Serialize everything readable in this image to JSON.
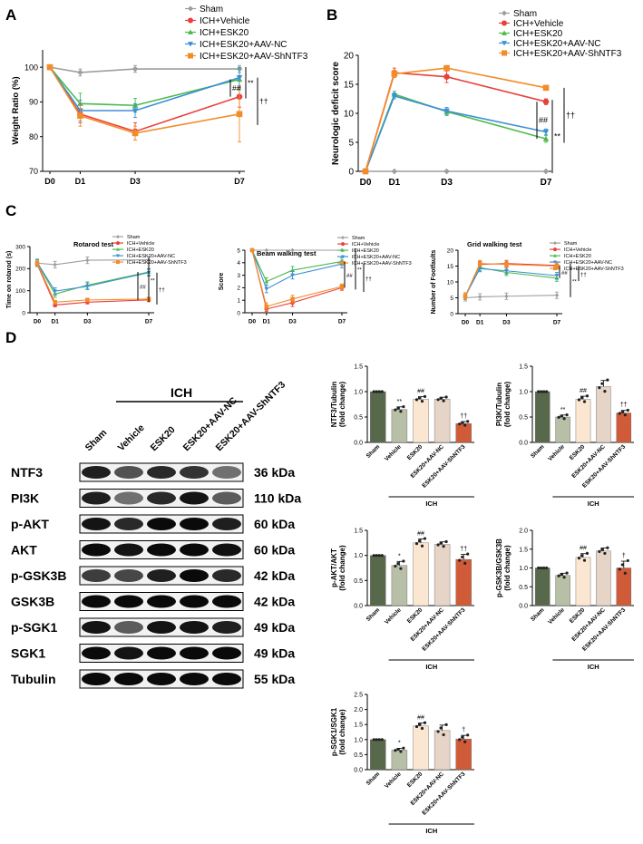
{
  "panels": {
    "A": "A",
    "B": "B",
    "C": "C",
    "D": "D"
  },
  "colors": {
    "sham": "#9e9e9e",
    "vehicle": "#e8413c",
    "esk20": "#4cba4a",
    "nc": "#3d8fd6",
    "sh": "#f28c28",
    "bar_sham": "#58684a",
    "bar_vehicle": "#b7c0a6",
    "bar_esk20": "#fbe6d2",
    "bar_nc": "#e6d4c6",
    "bar_sh": "#cf5b38"
  },
  "chart_data": [
    {
      "id": "A",
      "type": "line",
      "title": "",
      "xlabel": "",
      "ylabel": "Weight Ratio (%)",
      "x": [
        "D0",
        "D1",
        "D3",
        "D7"
      ],
      "ylim": [
        70,
        105
      ],
      "yticks": [
        70,
        80,
        90,
        100
      ],
      "legend": "top-right",
      "series": [
        {
          "name": "Sham",
          "key": "sham",
          "values": [
            100,
            98.5,
            99.5,
            99.5
          ],
          "err": [
            0,
            1,
            1,
            1
          ],
          "marker": "diamond"
        },
        {
          "name": "ICH+Vehicle",
          "key": "vehicle",
          "values": [
            100,
            86.5,
            81.5,
            91.5
          ],
          "err": [
            0,
            2.5,
            2.5,
            3
          ],
          "marker": "circle"
        },
        {
          "name": "ICH+ESK20",
          "key": "esk20",
          "values": [
            100,
            89.5,
            89,
            96.5
          ],
          "err": [
            0,
            3,
            2,
            3
          ],
          "marker": "triangle"
        },
        {
          "name": "ICH+ESK20+AAV-NC",
          "key": "nc",
          "values": [
            100,
            87.5,
            87.5,
            97
          ],
          "err": [
            0,
            3,
            2,
            3
          ],
          "marker": "triangle-down"
        },
        {
          "name": "ICH+ESK20+AAV-ShNTF3",
          "key": "sh",
          "values": [
            100,
            86,
            81,
            86.5
          ],
          "err": [
            0,
            3,
            2,
            8
          ],
          "marker": "square"
        }
      ],
      "sig": [
        "##",
        "**",
        "††"
      ]
    },
    {
      "id": "B",
      "type": "line",
      "title": "",
      "xlabel": "",
      "ylabel": "Neurologic deficit score",
      "x": [
        "D0",
        "D1",
        "D3",
        "D7"
      ],
      "ylim": [
        0,
        20
      ],
      "yticks": [
        0,
        5,
        10,
        15,
        20
      ],
      "legend": "top-right",
      "series": [
        {
          "name": "Sham",
          "key": "sham",
          "values": [
            0,
            0,
            0,
            0
          ],
          "err": [
            0,
            0,
            0,
            0
          ],
          "marker": "diamond"
        },
        {
          "name": "ICH+Vehicle",
          "key": "vehicle",
          "values": [
            0,
            17,
            16.3,
            12
          ],
          "err": [
            0,
            0.8,
            1,
            0.5
          ],
          "marker": "circle"
        },
        {
          "name": "ICH+ESK20",
          "key": "esk20",
          "values": [
            0,
            13.3,
            10.3,
            5.6
          ],
          "err": [
            0,
            0.5,
            0.7,
            0.6
          ],
          "marker": "triangle"
        },
        {
          "name": "ICH+ESK20+AAV-NC",
          "key": "nc",
          "values": [
            0,
            13,
            10.4,
            6.8
          ],
          "err": [
            0,
            0.5,
            0.6,
            0.5
          ],
          "marker": "triangle-down"
        },
        {
          "name": "ICH+ESK20+AAV-ShNTF3",
          "key": "sh",
          "values": [
            0,
            16.8,
            17.8,
            14.4
          ],
          "err": [
            0,
            0.6,
            0.3,
            0.4
          ],
          "marker": "square"
        }
      ],
      "sig": [
        "##",
        "**",
        "††"
      ]
    },
    {
      "id": "C1",
      "type": "line",
      "title": "Rotarod test",
      "xlabel": "",
      "ylabel": "Time on rotarod (s)",
      "x": [
        "D0",
        "D1",
        "D3",
        "D7"
      ],
      "ylim": [
        0,
        300
      ],
      "yticks": [
        0,
        100,
        200,
        300
      ],
      "legend": "top-right",
      "series": [
        {
          "name": "Sham",
          "key": "sham",
          "values": [
            225,
            218,
            238,
            240
          ],
          "err": [
            15,
            15,
            15,
            15
          ],
          "marker": "diamond"
        },
        {
          "name": "ICH+Vehicle",
          "key": "vehicle",
          "values": [
            220,
            35,
            48,
            58
          ],
          "err": [
            10,
            8,
            8,
            8
          ],
          "marker": "circle"
        },
        {
          "name": "ICH+ESK20",
          "key": "esk20",
          "values": [
            225,
            85,
            125,
            185
          ],
          "err": [
            15,
            15,
            15,
            15
          ],
          "marker": "triangle"
        },
        {
          "name": "ICH+ESK20+AAV-NC",
          "key": "nc",
          "values": [
            228,
            98,
            120,
            182
          ],
          "err": [
            15,
            15,
            15,
            15
          ],
          "marker": "triangle-down"
        },
        {
          "name": "ICH+ESK20+AAV-ShNTF3",
          "key": "sh",
          "values": [
            225,
            48,
            58,
            62
          ],
          "err": [
            10,
            8,
            8,
            8
          ],
          "marker": "square"
        }
      ],
      "sig": [
        "##",
        "**",
        "††"
      ]
    },
    {
      "id": "C2",
      "type": "line",
      "title": "Beam walking test",
      "xlabel": "",
      "ylabel": "Score",
      "x": [
        "D0",
        "D1",
        "D3",
        "D7"
      ],
      "ylim": [
        0,
        5
      ],
      "yticks": [
        0,
        1,
        2,
        3,
        4,
        5
      ],
      "legend": "top-right",
      "series": [
        {
          "name": "Sham",
          "key": "sham",
          "values": [
            5,
            5,
            5,
            5
          ],
          "err": [
            0,
            0,
            0,
            0
          ],
          "marker": "diamond"
        },
        {
          "name": "ICH+Vehicle",
          "key": "vehicle",
          "values": [
            5,
            0.3,
            0.8,
            2.0
          ],
          "err": [
            0,
            0.2,
            0.3,
            0.2
          ],
          "marker": "circle"
        },
        {
          "name": "ICH+ESK20",
          "key": "esk20",
          "values": [
            5,
            2.5,
            3.4,
            4.1
          ],
          "err": [
            0,
            0.3,
            0.3,
            0.3
          ],
          "marker": "triangle"
        },
        {
          "name": "ICH+ESK20+AAV-NC",
          "key": "nc",
          "values": [
            5,
            1.9,
            3.0,
            3.9
          ],
          "err": [
            0,
            0.3,
            0.3,
            0.3
          ],
          "marker": "triangle-down"
        },
        {
          "name": "ICH+ESK20+AAV-ShNTF3",
          "key": "sh",
          "values": [
            5,
            0.5,
            1.1,
            2.1
          ],
          "err": [
            0,
            0.3,
            0.3,
            0.2
          ],
          "marker": "square"
        }
      ],
      "sig": [
        "##",
        "**",
        "††"
      ]
    },
    {
      "id": "C3",
      "type": "line",
      "title": "Grid walking test",
      "xlabel": "",
      "ylabel": "Number of Footfaults",
      "x": [
        "D0",
        "D1",
        "D3",
        "D7"
      ],
      "ylim": [
        0,
        20
      ],
      "yticks": [
        0,
        5,
        10,
        15,
        20
      ],
      "legend": "top-right",
      "series": [
        {
          "name": "Sham",
          "key": "sham",
          "values": [
            5,
            5.3,
            5.5,
            5.8
          ],
          "err": [
            1,
            1,
            1,
            1
          ],
          "marker": "diamond"
        },
        {
          "name": "ICH+Vehicle",
          "key": "vehicle",
          "values": [
            5.5,
            15.5,
            15.8,
            15.2
          ],
          "err": [
            1,
            1,
            1,
            1
          ],
          "marker": "circle"
        },
        {
          "name": "ICH+ESK20",
          "key": "esk20",
          "values": [
            5.5,
            14.5,
            13.0,
            11.2
          ],
          "err": [
            1,
            1,
            1,
            1
          ],
          "marker": "triangle"
        },
        {
          "name": "ICH+ESK20+AAV-NC",
          "key": "nc",
          "values": [
            5.5,
            14.2,
            13.5,
            12.0
          ],
          "err": [
            1,
            1,
            1,
            1
          ],
          "marker": "triangle-down"
        },
        {
          "name": "ICH+ESK20+AAV-ShNTF3",
          "key": "sh",
          "values": [
            5.5,
            15.8,
            15.5,
            15.0
          ],
          "err": [
            1,
            1,
            1,
            1
          ],
          "marker": "square"
        }
      ],
      "sig": [
        "##",
        "**",
        "††"
      ]
    },
    {
      "id": "D1",
      "type": "bar",
      "ylabel": "NTF3/Tubulin\n(fold change)",
      "categories": [
        "Sham",
        "Vehicle",
        "ESK20",
        "ESK20+AAV-NC",
        "ESK20+AAV-ShNTF3"
      ],
      "values": [
        1.0,
        0.65,
        0.85,
        0.85,
        0.37
      ],
      "err": [
        0,
        0.05,
        0.05,
        0.04,
        0.04
      ],
      "ylim": [
        0,
        1.5
      ],
      "yticks": [
        0.0,
        0.5,
        1.0,
        1.5
      ],
      "marks": [
        "",
        "**",
        "##",
        "",
        "††"
      ],
      "group": "ICH"
    },
    {
      "id": "D2",
      "type": "bar",
      "ylabel": "PI3K/Tubulin\n(fold change)",
      "categories": [
        "Sham",
        "Vehicle",
        "ESK20",
        "ESK20+AAV-NC",
        "ESK20+AAV-ShNTF3"
      ],
      "values": [
        1.0,
        0.5,
        0.85,
        1.1,
        0.58
      ],
      "err": [
        0,
        0.04,
        0.06,
        0.12,
        0.05
      ],
      "ylim": [
        0,
        1.5
      ],
      "yticks": [
        0.0,
        0.5,
        1.0,
        1.5
      ],
      "marks": [
        "",
        "**",
        "##",
        "",
        "††"
      ],
      "group": "ICH"
    },
    {
      "id": "D3",
      "type": "bar",
      "ylabel": "p-AKT/AKT\n(fold change)",
      "categories": [
        "Sham",
        "Vehicle",
        "ESK20",
        "ESK20+AAV-NC",
        "ESK20+AAV-ShNTF3"
      ],
      "values": [
        1.0,
        0.8,
        1.25,
        1.22,
        0.92
      ],
      "err": [
        0,
        0.08,
        0.08,
        0.05,
        0.1
      ],
      "ylim": [
        0,
        1.5
      ],
      "yticks": [
        0.0,
        0.5,
        1.0,
        1.5
      ],
      "marks": [
        "",
        "*",
        "##",
        "",
        "††"
      ],
      "group": "ICH"
    },
    {
      "id": "D4",
      "type": "bar",
      "ylabel": "p-GSK3B/GSK3B\n(fold change)",
      "categories": [
        "Sham",
        "Vehicle",
        "ESK20",
        "ESK20+AAV-NC",
        "ESK20+AAV-ShNTF3"
      ],
      "values": [
        1.0,
        0.8,
        1.28,
        1.45,
        1.0
      ],
      "err": [
        0,
        0.06,
        0.1,
        0.08,
        0.18
      ],
      "ylim": [
        0,
        2.0
      ],
      "yticks": [
        0.0,
        0.5,
        1.0,
        1.5,
        2.0
      ],
      "marks": [
        "",
        "",
        "##",
        "",
        "†"
      ],
      "group": "ICH"
    },
    {
      "id": "D5",
      "type": "bar",
      "ylabel": "p-SGK1/SGK1\n(fold change)",
      "categories": [
        "Sham",
        "Vehicle",
        "ESK20",
        "ESK20+AAV-NC",
        "ESK20+AAV-ShNTF3"
      ],
      "values": [
        1.0,
        0.65,
        1.45,
        1.3,
        1.02
      ],
      "err": [
        0,
        0.06,
        0.1,
        0.18,
        0.12
      ],
      "ylim": [
        0,
        2.5
      ],
      "yticks": [
        0.0,
        0.5,
        1.0,
        1.5,
        2.0,
        2.5
      ],
      "marks": [
        "",
        "*",
        "##",
        "",
        "†"
      ],
      "group": "ICH"
    }
  ],
  "blot": {
    "group": "ICH",
    "lanes": [
      "Sham",
      "Vehicle",
      "ESK20",
      "ESK20+AAV-NC",
      "ESK20+AAV-ShNTF3"
    ],
    "rows": [
      {
        "name": "NTF3",
        "kda": "36 kDa",
        "intensity": [
          0.85,
          0.6,
          0.8,
          0.75,
          0.45
        ]
      },
      {
        "name": "PI3K",
        "kda": "110 kDa",
        "intensity": [
          0.85,
          0.45,
          0.8,
          0.9,
          0.55
        ]
      },
      {
        "name": "p-AKT",
        "kda": "60 kDa",
        "intensity": [
          0.9,
          0.8,
          0.95,
          0.95,
          0.85
        ]
      },
      {
        "name": "AKT",
        "kda": "60 kDa",
        "intensity": [
          0.95,
          0.9,
          0.95,
          0.95,
          0.92
        ]
      },
      {
        "name": "p-GSK3B",
        "kda": "42 kDa",
        "intensity": [
          0.7,
          0.65,
          0.85,
          0.95,
          0.8
        ]
      },
      {
        "name": "GSK3B",
        "kda": "42 kDa",
        "intensity": [
          0.95,
          0.95,
          0.95,
          0.95,
          0.95
        ]
      },
      {
        "name": "p-SGK1",
        "kda": "49 kDa",
        "intensity": [
          0.9,
          0.55,
          0.9,
          0.9,
          0.85
        ]
      },
      {
        "name": "SGK1",
        "kda": "49 kDa",
        "intensity": [
          0.95,
          0.9,
          0.95,
          0.95,
          0.95
        ]
      },
      {
        "name": "Tubulin",
        "kda": "55 kDa",
        "intensity": [
          0.95,
          0.95,
          0.95,
          0.95,
          0.95
        ]
      }
    ]
  }
}
